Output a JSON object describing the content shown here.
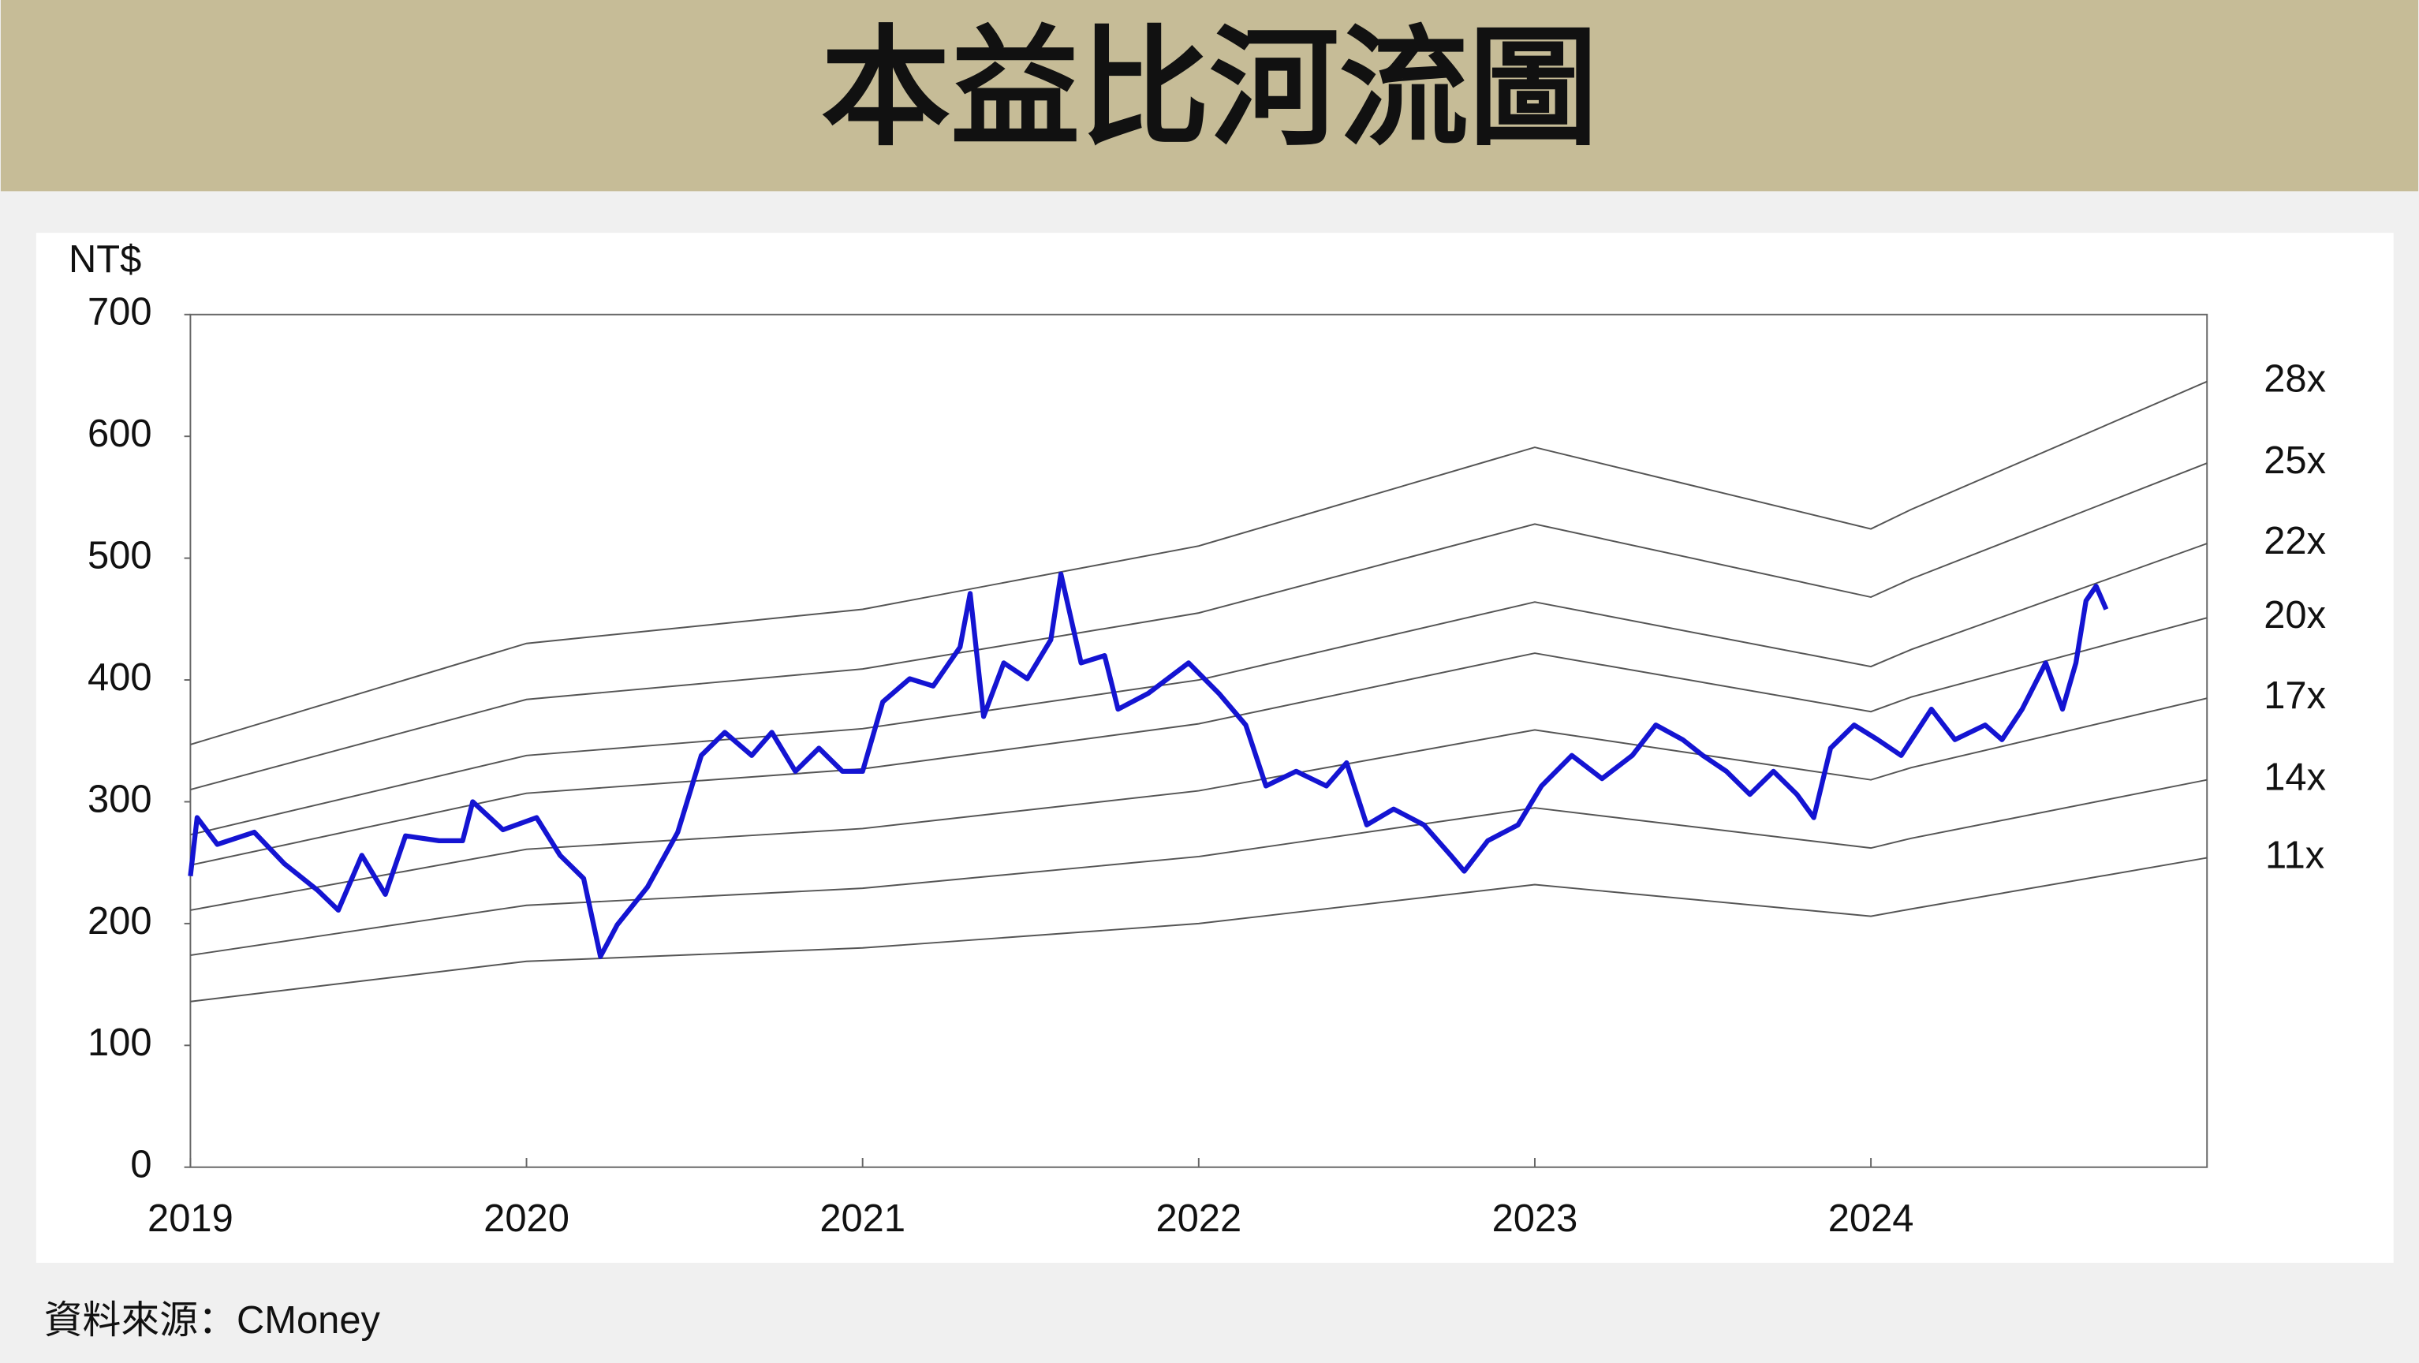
{
  "chart_data": {
    "type": "line",
    "title": "本益比河流圖",
    "y_label": "NT$",
    "source": "資料來源：CMoney",
    "xlim": [
      2019,
      2025
    ],
    "xticks": [
      2019,
      2020,
      2021,
      2022,
      2023,
      2024
    ],
    "ylim": [
      0,
      700
    ],
    "yticks": [
      0,
      100,
      200,
      300,
      400,
      500,
      600,
      700
    ],
    "price": {
      "color": "#1414d2",
      "x": [
        2019.0,
        2019.02,
        2019.08,
        2019.19,
        2019.28,
        2019.38,
        2019.44,
        2019.51,
        2019.58,
        2019.64,
        2019.74,
        2019.81,
        2019.84,
        2019.93,
        2020.03,
        2020.1,
        2020.17,
        2020.22,
        2020.27,
        2020.36,
        2020.45,
        2020.52,
        2020.59,
        2020.67,
        2020.73,
        2020.8,
        2020.87,
        2020.94,
        2021.0,
        2021.06,
        2021.14,
        2021.21,
        2021.29,
        2021.32,
        2021.36,
        2021.42,
        2021.49,
        2021.56,
        2021.59,
        2021.65,
        2021.72,
        2021.76,
        2021.85,
        2021.97,
        2022.06,
        2022.14,
        2022.2,
        2022.29,
        2022.38,
        2022.44,
        2022.5,
        2022.58,
        2022.67,
        2022.75,
        2022.79,
        2022.86,
        2022.95,
        2023.02,
        2023.11,
        2023.2,
        2023.29,
        2023.36,
        2023.44,
        2023.5,
        2023.57,
        2023.64,
        2023.71,
        2023.78,
        2023.83,
        2023.88,
        2023.95,
        2024.02,
        2024.09,
        2024.18,
        2024.25,
        2024.34,
        2024.39,
        2024.45,
        2024.52,
        2024.57,
        2024.61,
        2024.64,
        2024.67,
        2024.7
      ],
      "values": [
        239,
        287,
        265,
        275,
        249,
        227,
        211,
        256,
        224,
        272,
        268,
        268,
        300,
        277,
        287,
        256,
        237,
        173,
        199,
        230,
        275,
        338,
        357,
        338,
        357,
        325,
        344,
        325,
        325,
        382,
        401,
        395,
        427,
        471,
        370,
        414,
        401,
        433,
        487,
        414,
        420,
        376,
        389,
        414,
        389,
        363,
        313,
        325,
        313,
        332,
        281,
        294,
        281,
        256,
        243,
        268,
        281,
        313,
        338,
        319,
        338,
        363,
        351,
        338,
        325,
        306,
        325,
        306,
        287,
        344,
        363,
        351,
        338,
        376,
        351,
        363,
        351,
        376,
        414,
        376,
        414,
        465,
        477,
        458
      ]
    },
    "band_x": [
      2019,
      2020,
      2021,
      2022,
      2023,
      2024,
      2024.12,
      2025
    ],
    "band_color": "#555555",
    "bands": [
      {
        "name": "28x",
        "values": [
          347,
          430,
          458,
          510,
          591,
          524,
          540,
          645
        ]
      },
      {
        "name": "25x",
        "values": [
          310,
          384,
          409,
          455,
          528,
          468,
          483,
          578
        ]
      },
      {
        "name": "22x",
        "values": [
          273,
          338,
          360,
          400,
          464,
          411,
          425,
          512
        ]
      },
      {
        "name": "20x",
        "values": [
          248,
          307,
          327,
          364,
          422,
          374,
          386,
          451
        ]
      },
      {
        "name": "17x",
        "values": [
          211,
          261,
          278,
          309,
          359,
          318,
          328,
          385
        ]
      },
      {
        "name": "14x",
        "values": [
          174,
          215,
          229,
          255,
          295,
          262,
          270,
          318
        ]
      },
      {
        "name": "11x",
        "values": [
          136,
          169,
          180,
          200,
          232,
          206,
          212,
          254
        ]
      }
    ]
  }
}
